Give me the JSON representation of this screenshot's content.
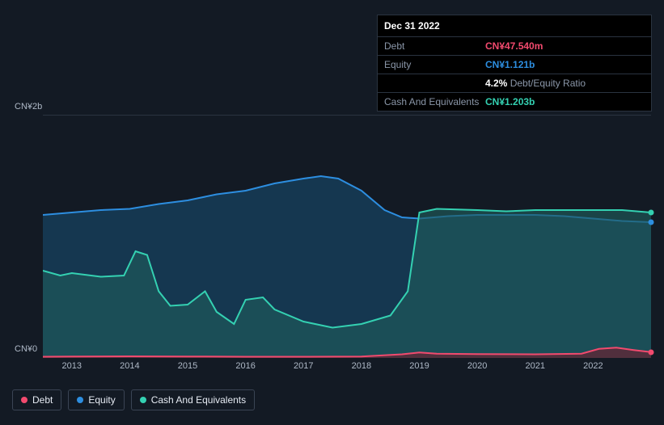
{
  "tooltip": {
    "date": "Dec 31 2022",
    "rows": [
      {
        "label": "Debt",
        "value": "CN¥47.540m",
        "color": "#f24a6e"
      },
      {
        "label": "Equity",
        "value": "CN¥1.121b",
        "color": "#2d8ee0"
      },
      {
        "label": "",
        "value": "4.2%",
        "suffix": " Debt/Equity Ratio",
        "color": "#ffffff"
      },
      {
        "label": "Cash And Equivalents",
        "value": "CN¥1.203b",
        "color": "#34d1b2"
      }
    ]
  },
  "chart": {
    "background": "#131a24",
    "grid_color": "#2a3340",
    "y_range": [
      0,
      2
    ],
    "y_ticks": [
      {
        "v": 0,
        "label": "CN¥0"
      },
      {
        "v": 2,
        "label": "CN¥2b"
      }
    ],
    "x_range": [
      2012.5,
      2023.0
    ],
    "x_ticks": [
      2013,
      2014,
      2015,
      2016,
      2017,
      2018,
      2019,
      2020,
      2021,
      2022
    ],
    "series": {
      "equity": {
        "color": "#2d8ee0",
        "fill": "#17425f",
        "fill_opacity": 0.75,
        "data": [
          [
            2012.5,
            1.18
          ],
          [
            2013.0,
            1.2
          ],
          [
            2013.5,
            1.22
          ],
          [
            2014.0,
            1.23
          ],
          [
            2014.5,
            1.27
          ],
          [
            2015.0,
            1.3
          ],
          [
            2015.5,
            1.35
          ],
          [
            2016.0,
            1.38
          ],
          [
            2016.5,
            1.44
          ],
          [
            2017.0,
            1.48
          ],
          [
            2017.3,
            1.5
          ],
          [
            2017.6,
            1.48
          ],
          [
            2018.0,
            1.38
          ],
          [
            2018.4,
            1.22
          ],
          [
            2018.7,
            1.16
          ],
          [
            2019.0,
            1.15
          ],
          [
            2019.5,
            1.17
          ],
          [
            2020.0,
            1.18
          ],
          [
            2020.5,
            1.18
          ],
          [
            2021.0,
            1.18
          ],
          [
            2021.5,
            1.17
          ],
          [
            2022.0,
            1.15
          ],
          [
            2022.5,
            1.13
          ],
          [
            2023.0,
            1.12
          ]
        ]
      },
      "cash": {
        "color": "#34d1b2",
        "fill": "#1e5a5a",
        "fill_opacity": 0.65,
        "data": [
          [
            2012.5,
            0.72
          ],
          [
            2012.8,
            0.68
          ],
          [
            2013.0,
            0.7
          ],
          [
            2013.5,
            0.67
          ],
          [
            2013.9,
            0.68
          ],
          [
            2014.1,
            0.88
          ],
          [
            2014.3,
            0.85
          ],
          [
            2014.5,
            0.55
          ],
          [
            2014.7,
            0.43
          ],
          [
            2015.0,
            0.44
          ],
          [
            2015.3,
            0.55
          ],
          [
            2015.5,
            0.38
          ],
          [
            2015.8,
            0.28
          ],
          [
            2016.0,
            0.48
          ],
          [
            2016.3,
            0.5
          ],
          [
            2016.5,
            0.4
          ],
          [
            2017.0,
            0.3
          ],
          [
            2017.5,
            0.25
          ],
          [
            2018.0,
            0.28
          ],
          [
            2018.5,
            0.35
          ],
          [
            2018.8,
            0.55
          ],
          [
            2019.0,
            1.2
          ],
          [
            2019.3,
            1.23
          ],
          [
            2020.0,
            1.22
          ],
          [
            2020.5,
            1.21
          ],
          [
            2021.0,
            1.22
          ],
          [
            2021.5,
            1.22
          ],
          [
            2022.0,
            1.22
          ],
          [
            2022.5,
            1.22
          ],
          [
            2023.0,
            1.2
          ]
        ]
      },
      "debt": {
        "color": "#f24a6e",
        "fill": "#5a2a38",
        "fill_opacity": 0.85,
        "data": [
          [
            2012.5,
            0.01
          ],
          [
            2013.0,
            0.012
          ],
          [
            2014.0,
            0.013
          ],
          [
            2015.0,
            0.012
          ],
          [
            2016.0,
            0.01
          ],
          [
            2017.0,
            0.01
          ],
          [
            2018.0,
            0.012
          ],
          [
            2018.7,
            0.03
          ],
          [
            2019.0,
            0.045
          ],
          [
            2019.3,
            0.035
          ],
          [
            2020.0,
            0.032
          ],
          [
            2021.0,
            0.03
          ],
          [
            2021.8,
            0.035
          ],
          [
            2022.1,
            0.075
          ],
          [
            2022.4,
            0.085
          ],
          [
            2022.7,
            0.065
          ],
          [
            2023.0,
            0.048
          ]
        ]
      }
    },
    "legend": [
      {
        "label": "Debt",
        "color": "#f24a6e"
      },
      {
        "label": "Equity",
        "color": "#2d8ee0"
      },
      {
        "label": "Cash And Equivalents",
        "color": "#34d1b2"
      }
    ]
  }
}
